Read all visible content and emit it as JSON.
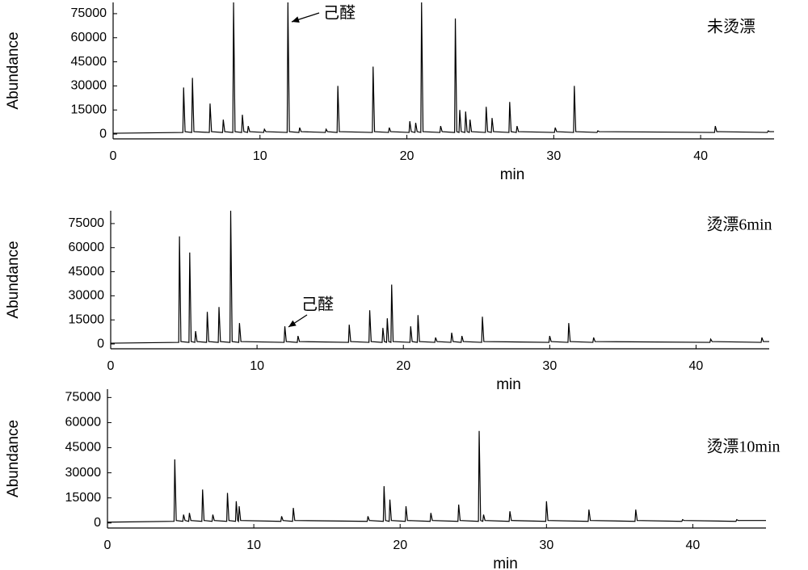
{
  "chart_data": [
    {
      "type": "line",
      "title": "未烫漂",
      "annotation": "己醛",
      "x_label": "min",
      "y_label": "Abundance",
      "color": "#000000",
      "xlim": [
        0,
        45
      ],
      "ylim": [
        -3000,
        82000
      ],
      "xticks": [
        0,
        10,
        20,
        30,
        40
      ],
      "yticks": [
        0,
        15000,
        30000,
        45000,
        60000,
        75000
      ],
      "x": [
        0,
        4.75,
        4.8,
        4.9,
        5.35,
        5.4,
        5.5,
        6.55,
        6.6,
        6.7,
        7.45,
        7.5,
        7.6,
        8.15,
        8.2,
        8.3,
        8.75,
        8.8,
        8.9,
        9.15,
        9.2,
        9.3,
        10.25,
        10.3,
        10.4,
        11.85,
        11.9,
        12.0,
        12.65,
        12.7,
        12.8,
        14.45,
        14.5,
        14.6,
        15.25,
        15.3,
        15.4,
        17.65,
        17.7,
        17.8,
        18.75,
        18.8,
        18.9,
        20.15,
        20.2,
        20.3,
        20.55,
        20.6,
        20.7,
        20.95,
        21.0,
        21.1,
        22.25,
        22.3,
        22.4,
        23.25,
        23.3,
        23.4,
        23.55,
        23.6,
        23.7,
        23.95,
        24.0,
        24.1,
        24.25,
        24.3,
        24.4,
        25.35,
        25.4,
        25.5,
        25.75,
        25.8,
        25.9,
        26.95,
        27.0,
        27.1,
        27.45,
        27.5,
        27.6,
        30.05,
        30.1,
        30.2,
        31.35,
        31.4,
        31.5,
        32.95,
        33.0,
        33.1,
        40.95,
        41.0,
        41.1,
        44.55,
        44.6,
        44.7,
        45
      ],
      "values": [
        500,
        1000,
        29000,
        1500,
        1000,
        35000,
        1500,
        1000,
        19000,
        1500,
        1000,
        9000,
        1500,
        1000,
        82000,
        1500,
        1000,
        12000,
        1500,
        1000,
        5000,
        1500,
        1000,
        3000,
        1500,
        1000,
        82000,
        1500,
        1000,
        4000,
        1500,
        1000,
        3000,
        1500,
        1000,
        30000,
        1500,
        1000,
        42000,
        1500,
        1000,
        4000,
        1500,
        1000,
        8000,
        1500,
        1000,
        7000,
        1500,
        1000,
        82000,
        1500,
        1000,
        5000,
        1500,
        1000,
        72000,
        1500,
        1000,
        15000,
        1500,
        1000,
        14000,
        1500,
        1000,
        9000,
        1500,
        1000,
        17000,
        1500,
        1000,
        10000,
        1500,
        1000,
        20000,
        1500,
        1000,
        5000,
        1500,
        1000,
        4000,
        1500,
        1000,
        30000,
        1500,
        1000,
        2000,
        1500,
        1000,
        5000,
        1500,
        1000,
        2000,
        1500,
        1500
      ]
    },
    {
      "type": "line",
      "title": "烫漂6min",
      "annotation": "己醛",
      "x_label": "min",
      "y_label": "Abundance",
      "color": "#000000",
      "xlim": [
        0,
        45
      ],
      "ylim": [
        -3000,
        83000
      ],
      "xticks": [
        0,
        10,
        20,
        30,
        40
      ],
      "yticks": [
        0,
        15000,
        30000,
        45000,
        60000,
        75000
      ],
      "x": [
        0,
        4.65,
        4.7,
        4.8,
        5.35,
        5.4,
        5.5,
        5.75,
        5.8,
        5.9,
        6.55,
        6.6,
        6.7,
        7.35,
        7.4,
        7.5,
        8.15,
        8.2,
        8.3,
        8.75,
        8.8,
        8.9,
        11.85,
        11.9,
        12.0,
        12.75,
        12.8,
        12.9,
        16.25,
        16.3,
        16.4,
        17.65,
        17.7,
        17.8,
        18.55,
        18.6,
        18.7,
        18.85,
        18.9,
        19.0,
        19.15,
        19.2,
        19.3,
        20.45,
        20.5,
        20.6,
        20.95,
        21.0,
        21.1,
        22.15,
        22.2,
        22.3,
        23.25,
        23.3,
        23.4,
        23.95,
        24.0,
        24.1,
        25.35,
        25.4,
        25.5,
        29.95,
        30.0,
        30.1,
        31.25,
        31.3,
        31.4,
        32.95,
        33.0,
        33.1,
        40.95,
        41.0,
        41.1,
        44.45,
        44.5,
        44.6,
        45
      ],
      "values": [
        500,
        1000,
        67000,
        1500,
        1000,
        57000,
        1500,
        1000,
        8000,
        1500,
        1000,
        20000,
        1500,
        1000,
        23000,
        1500,
        1000,
        83000,
        1500,
        1000,
        13000,
        1500,
        1000,
        11000,
        1500,
        1000,
        5000,
        1500,
        1000,
        12000,
        1500,
        1000,
        21000,
        1500,
        1000,
        10000,
        1500,
        1000,
        16000,
        1500,
        1000,
        37000,
        1500,
        1000,
        11000,
        1500,
        1000,
        18000,
        1500,
        1000,
        4000,
        1500,
        1000,
        7000,
        1500,
        1000,
        5000,
        1500,
        1000,
        17000,
        1500,
        1000,
        5000,
        1500,
        1000,
        13000,
        1500,
        1000,
        4000,
        1500,
        1000,
        3000,
        1500,
        1000,
        4000,
        1500,
        1500
      ]
    },
    {
      "type": "line",
      "title": "烫漂10min",
      "x_label": "min",
      "y_label": "Abundance",
      "color": "#000000",
      "xlim": [
        0,
        45
      ],
      "ylim": [
        -3000,
        80000
      ],
      "xticks": [
        0,
        10,
        20,
        30,
        40
      ],
      "yticks": [
        0,
        15000,
        30000,
        45000,
        60000,
        75000
      ],
      "x": [
        0,
        4.55,
        4.6,
        4.7,
        5.15,
        5.2,
        5.3,
        5.55,
        5.6,
        5.7,
        6.45,
        6.5,
        6.6,
        7.15,
        7.2,
        7.3,
        8.15,
        8.2,
        8.3,
        8.75,
        8.8,
        8.9,
        8.95,
        9.0,
        9.1,
        11.85,
        11.9,
        12.0,
        12.65,
        12.7,
        12.8,
        17.75,
        17.8,
        17.9,
        18.85,
        18.9,
        19.0,
        19.25,
        19.3,
        19.4,
        20.35,
        20.4,
        20.5,
        22.05,
        22.1,
        22.2,
        23.95,
        24.0,
        24.1,
        25.35,
        25.4,
        25.5,
        25.65,
        25.7,
        25.8,
        27.45,
        27.5,
        27.6,
        29.95,
        30.0,
        30.1,
        32.85,
        32.9,
        33.0,
        36.05,
        36.1,
        36.2,
        39.25,
        39.3,
        39.4,
        42.95,
        43.0,
        43.1,
        45
      ],
      "values": [
        500,
        1000,
        38000,
        1500,
        1000,
        5000,
        1500,
        1000,
        6000,
        1500,
        1000,
        20000,
        1500,
        1000,
        5000,
        1500,
        1000,
        18000,
        1500,
        1000,
        13000,
        1500,
        1000,
        10000,
        1500,
        1000,
        4000,
        1500,
        1000,
        9000,
        1500,
        1000,
        4000,
        1500,
        1000,
        22000,
        1500,
        1000,
        14000,
        1500,
        1000,
        10000,
        1500,
        1000,
        6000,
        1500,
        1000,
        11000,
        1500,
        1000,
        55000,
        1500,
        1000,
        5000,
        1500,
        1000,
        7000,
        1500,
        1000,
        13000,
        1500,
        1000,
        8000,
        1500,
        1000,
        8000,
        1500,
        1000,
        2000,
        1500,
        1000,
        2000,
        1500,
        1500
      ]
    }
  ]
}
